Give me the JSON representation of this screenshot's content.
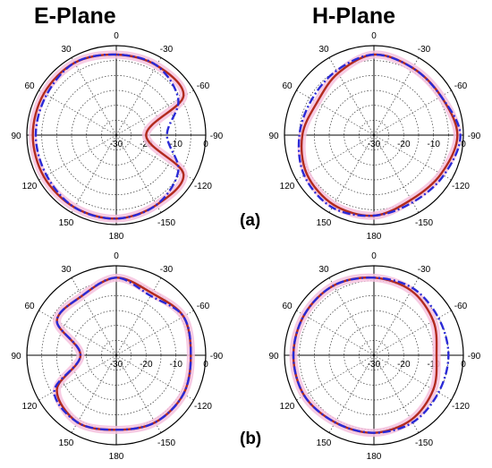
{
  "column_titles": [
    "E-Plane",
    "H-Plane"
  ],
  "panel_labels": [
    "(a)",
    "(b)"
  ],
  "colors": {
    "measured": "#b22a1e",
    "simulated": "#2a2ad6",
    "shade": "#f6c2de",
    "grid": "#333333",
    "axis": "#000000",
    "text": "#000000"
  },
  "chart_data": [
    {
      "type": "line",
      "polar": true,
      "column_title": "E-Plane",
      "panel_label": "(a)",
      "angle_labels": [
        "0",
        "-30",
        "-60",
        "-90",
        "-120",
        "-150",
        "180",
        "150",
        "120",
        "90",
        "60",
        "30"
      ],
      "radial_labels": [
        "-30",
        "-20",
        "-10",
        "0"
      ],
      "rlim": [
        -30,
        0
      ],
      "angle_zero": "top",
      "angle_direction": "negative clockwise",
      "grid": true,
      "angles": [
        0,
        30,
        60,
        90,
        120,
        150,
        180,
        -150,
        -120,
        -90,
        -60,
        -30
      ],
      "series": [
        {
          "style": "solid",
          "values": [
            -3,
            -2,
            -2,
            -2,
            -2,
            -2,
            -2,
            -3,
            -4,
            -20,
            -4,
            -3
          ]
        },
        {
          "style": "dash-dot",
          "values": [
            -3,
            -2,
            -3,
            -3,
            -3,
            -2,
            -2,
            -3,
            -6,
            -13,
            -6,
            -3
          ]
        }
      ]
    },
    {
      "type": "line",
      "polar": true,
      "column_title": "H-Plane",
      "panel_label": "(a)",
      "angle_labels": [
        "0",
        "-30",
        "-60",
        "-90",
        "-120",
        "-150",
        "180",
        "150",
        "120",
        "90",
        "60",
        "30"
      ],
      "radial_labels": [
        "-30",
        "-20",
        "-10",
        "0"
      ],
      "rlim": [
        -30,
        0
      ],
      "angle_zero": "top",
      "angle_direction": "negative clockwise",
      "grid": true,
      "angles": [
        0,
        30,
        60,
        90,
        120,
        150,
        180,
        -150,
        -120,
        -90,
        -60,
        -30
      ],
      "series": [
        {
          "style": "solid",
          "values": [
            -3,
            -6,
            -8,
            -6,
            -4,
            -3,
            -3,
            -5,
            -4,
            -2,
            -4,
            -4
          ]
        },
        {
          "style": "dash-dot",
          "values": [
            -3,
            -5,
            -6,
            -5,
            -3,
            -2,
            -3,
            -4,
            -3,
            -1,
            -4,
            -4
          ]
        }
      ]
    },
    {
      "type": "line",
      "polar": true,
      "column_title": "E-Plane",
      "panel_label": "(b)",
      "angle_labels": [
        "0",
        "-30",
        "-60",
        "-90",
        "-120",
        "-150",
        "180",
        "150",
        "120",
        "90",
        "60",
        "30"
      ],
      "radial_labels": [
        "-30",
        "-20",
        "-10",
        "0"
      ],
      "rlim": [
        -30,
        0
      ],
      "angle_zero": "top",
      "angle_direction": "negative clockwise",
      "grid": true,
      "angles": [
        0,
        30,
        60,
        90,
        120,
        150,
        180,
        -150,
        -120,
        -90,
        -60,
        -30
      ],
      "series": [
        {
          "style": "solid",
          "values": [
            -4,
            -7,
            -7,
            -18,
            -7,
            -4,
            -5,
            -4,
            -4,
            -5,
            -4,
            -6
          ]
        },
        {
          "style": "dash-dot",
          "values": [
            -4,
            -7,
            -7,
            -18,
            -6,
            -4,
            -5,
            -4,
            -4,
            -5,
            -4,
            -7
          ]
        }
      ]
    },
    {
      "type": "line",
      "polar": true,
      "column_title": "H-Plane",
      "panel_label": "(b)",
      "angle_labels": [
        "0",
        "-30",
        "-60",
        "-90",
        "-120",
        "-150",
        "180",
        "150",
        "120",
        "90",
        "60",
        "30"
      ],
      "radial_labels": [
        "-30",
        "-20",
        "-10",
        "0"
      ],
      "rlim": [
        -30,
        0
      ],
      "angle_zero": "top",
      "angle_direction": "negative clockwise",
      "grid": true,
      "angles": [
        0,
        30,
        60,
        90,
        120,
        150,
        180,
        -150,
        -120,
        -90,
        -60,
        -30
      ],
      "series": [
        {
          "style": "solid",
          "values": [
            -4,
            -3,
            -3,
            -3,
            -3,
            -4,
            -4,
            -5,
            -7,
            -9,
            -7,
            -5
          ]
        },
        {
          "style": "dash-dot",
          "values": [
            -4,
            -3,
            -3,
            -3,
            -3,
            -4,
            -4,
            -4,
            -5,
            -5,
            -5,
            -4
          ]
        }
      ]
    }
  ]
}
